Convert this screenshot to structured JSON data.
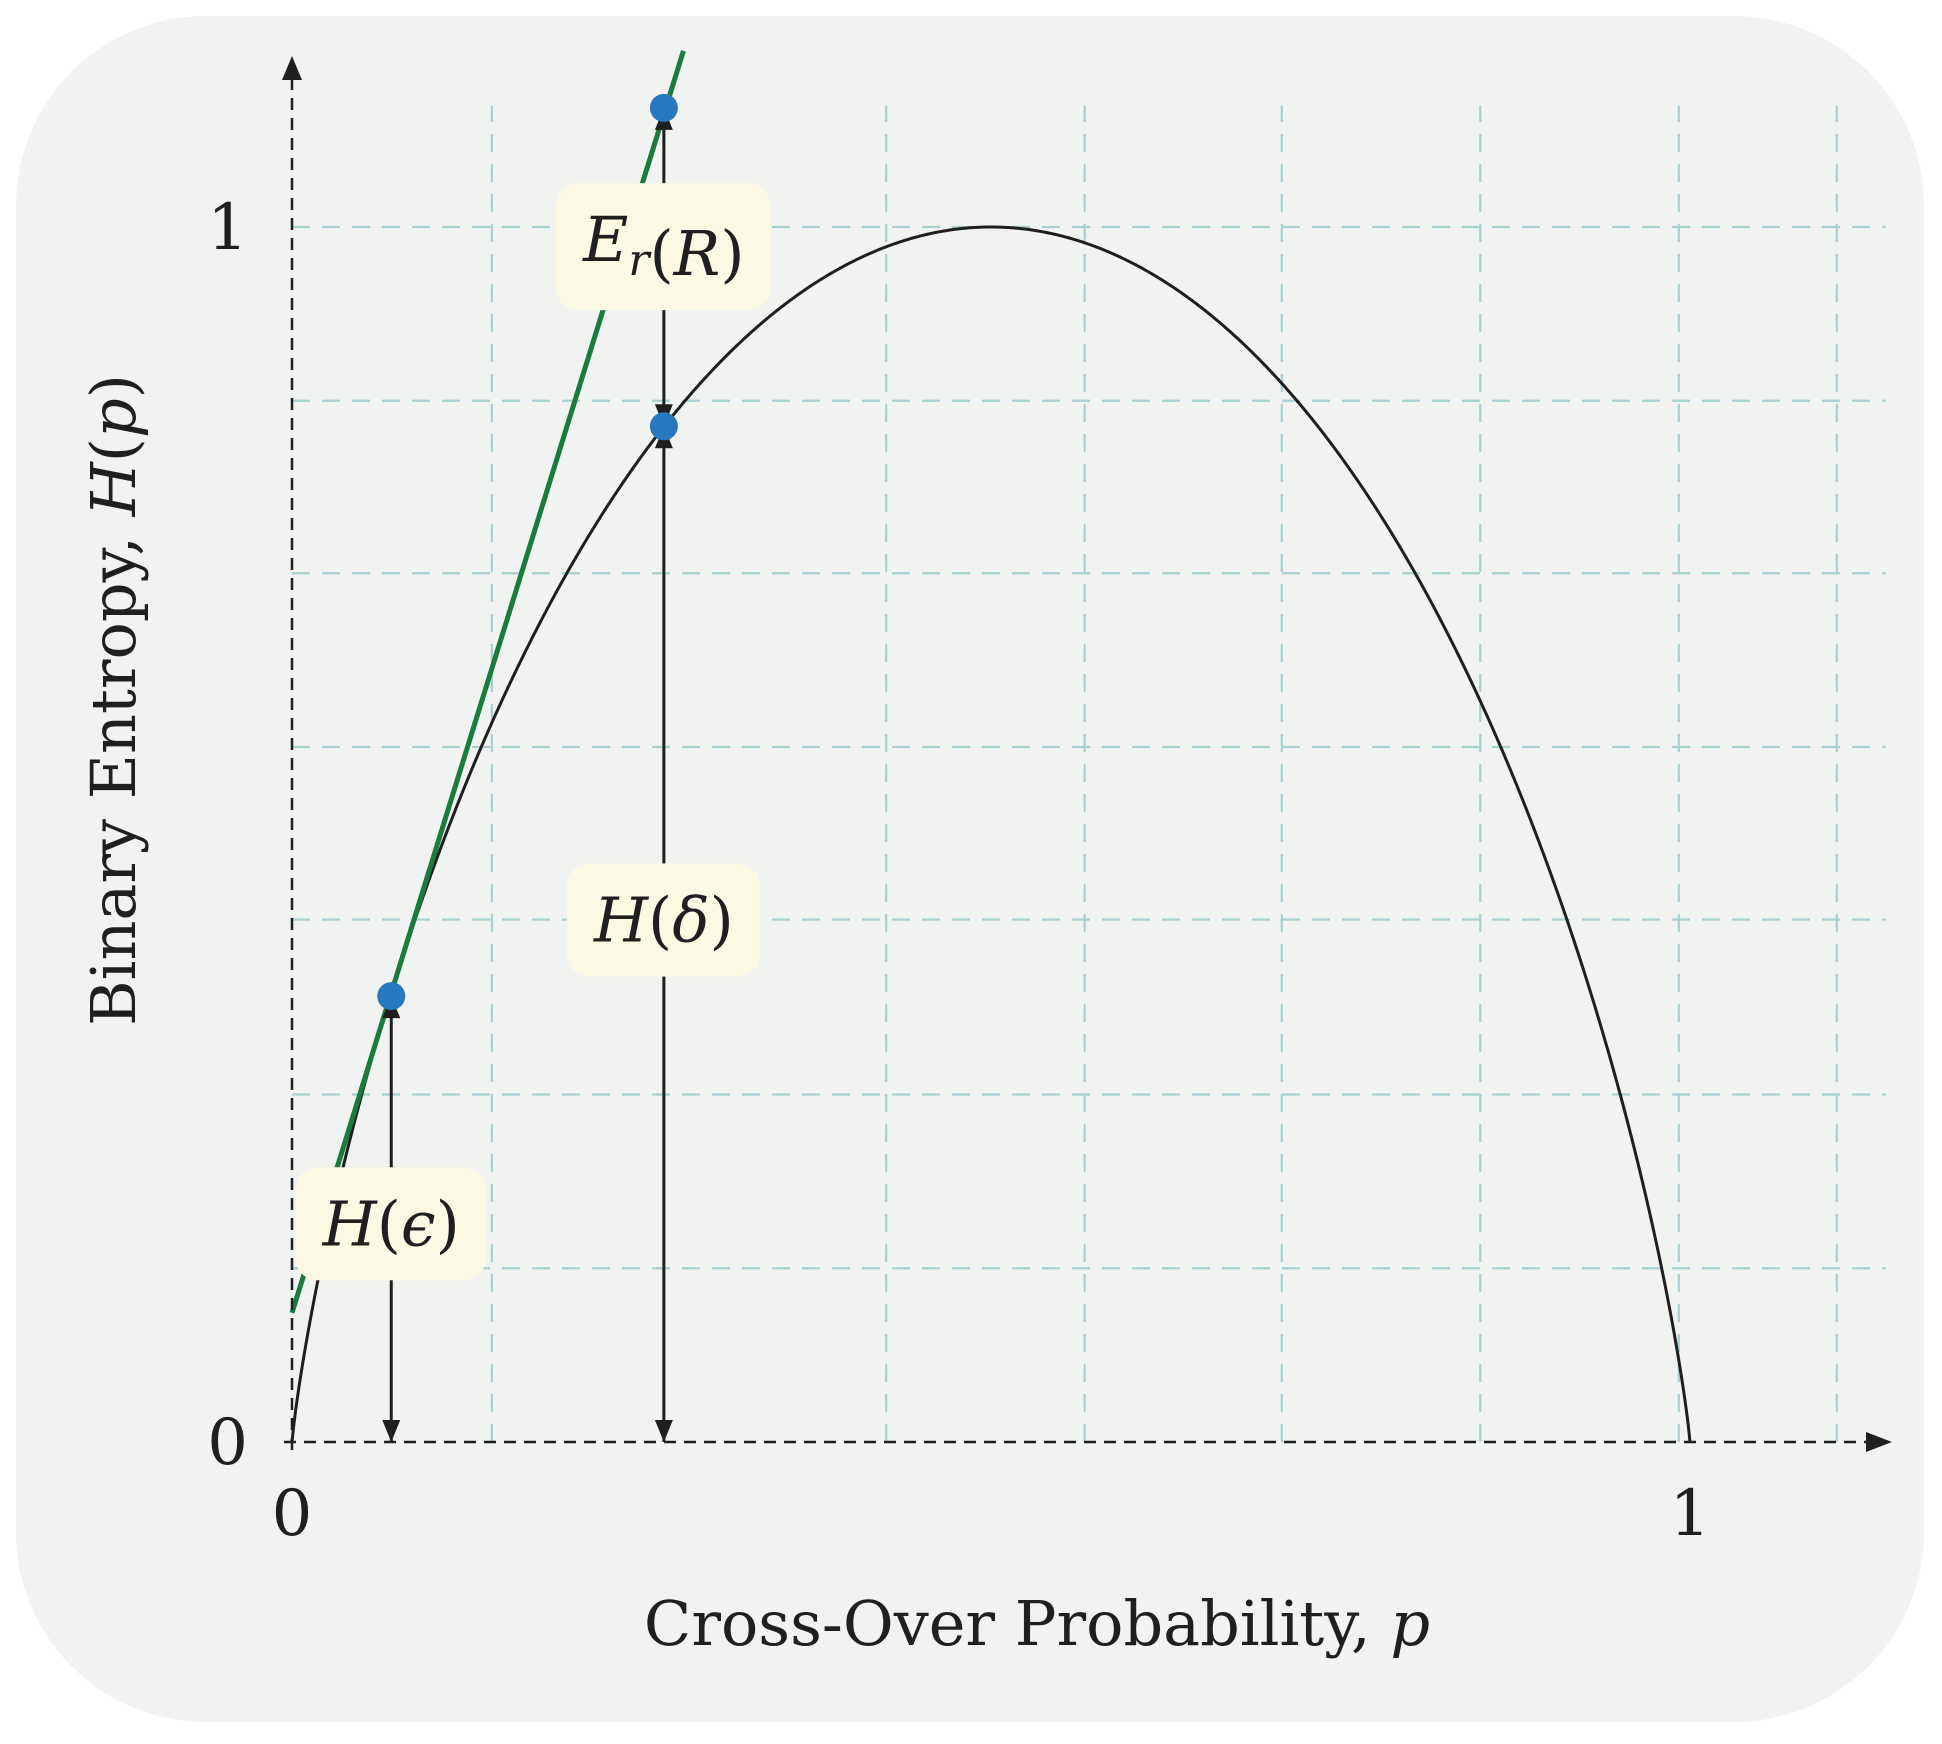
{
  "chart_data": {
    "type": "line",
    "title": "",
    "xlabel_text": "Cross-Over Probability, ",
    "xlabel_var": "p",
    "ylabel_text": "Binary Entropy, ",
    "ylabel_func": "H",
    "ylabel_paren_open": "(",
    "ylabel_var": "p",
    "ylabel_paren_close": ")",
    "xlim": [
      0,
      1.14
    ],
    "ylim": [
      0,
      1.1
    ],
    "x_ticks": [
      {
        "value": 0,
        "label": "0"
      },
      {
        "value": 1,
        "label": "1"
      }
    ],
    "y_ticks": [
      {
        "value": 0,
        "label": "0"
      },
      {
        "value": 1,
        "label": "1"
      }
    ],
    "x_grid": [
      0.143,
      0.266,
      0.425,
      0.567,
      0.708,
      0.85,
      0.992,
      1.105
    ],
    "y_grid": [
      0.143,
      0.286,
      0.43,
      0.572,
      0.715,
      0.857,
      1.0
    ],
    "grid": true,
    "grid_color": "#a8d0d2",
    "series": [
      {
        "function": "binary_entropy",
        "x_range": [
          0,
          1
        ],
        "color": "#1f1f1f"
      },
      {
        "function": "tangent_line",
        "tangent_at_x": 0.071,
        "x_range": [
          0,
          0.28
        ],
        "color": "#1b7a3e"
      }
    ],
    "points": [
      {
        "x": 0.071,
        "y": 0.367,
        "color": "#2878bd"
      },
      {
        "x": 0.266,
        "y": 0.836,
        "color": "#2878bd"
      },
      {
        "x": 0.266,
        "y": 1.098,
        "color": "#2878bd"
      }
    ],
    "annotations": [
      {
        "main": "H",
        "open": "(",
        "sym": "ϵ",
        "close": ")",
        "x": 0.071,
        "y": 0.18
      },
      {
        "main": "H",
        "open": "(",
        "sym": "δ",
        "close": ")",
        "x": 0.266,
        "y": 0.43
      },
      {
        "main": "E",
        "sub": "r",
        "open": "(",
        "sym": "R",
        "close": ")",
        "x": 0.266,
        "y": 0.99
      }
    ],
    "arrows": [
      {
        "x": 0.071,
        "from": 0,
        "to": 0.367
      },
      {
        "x": 0.266,
        "from": 0,
        "to": 0.836
      },
      {
        "x": 0.266,
        "from": 0.836,
        "to": 1.098
      }
    ],
    "label_bg": "#fbf8e4",
    "axis_color": "#1f1f1f"
  }
}
